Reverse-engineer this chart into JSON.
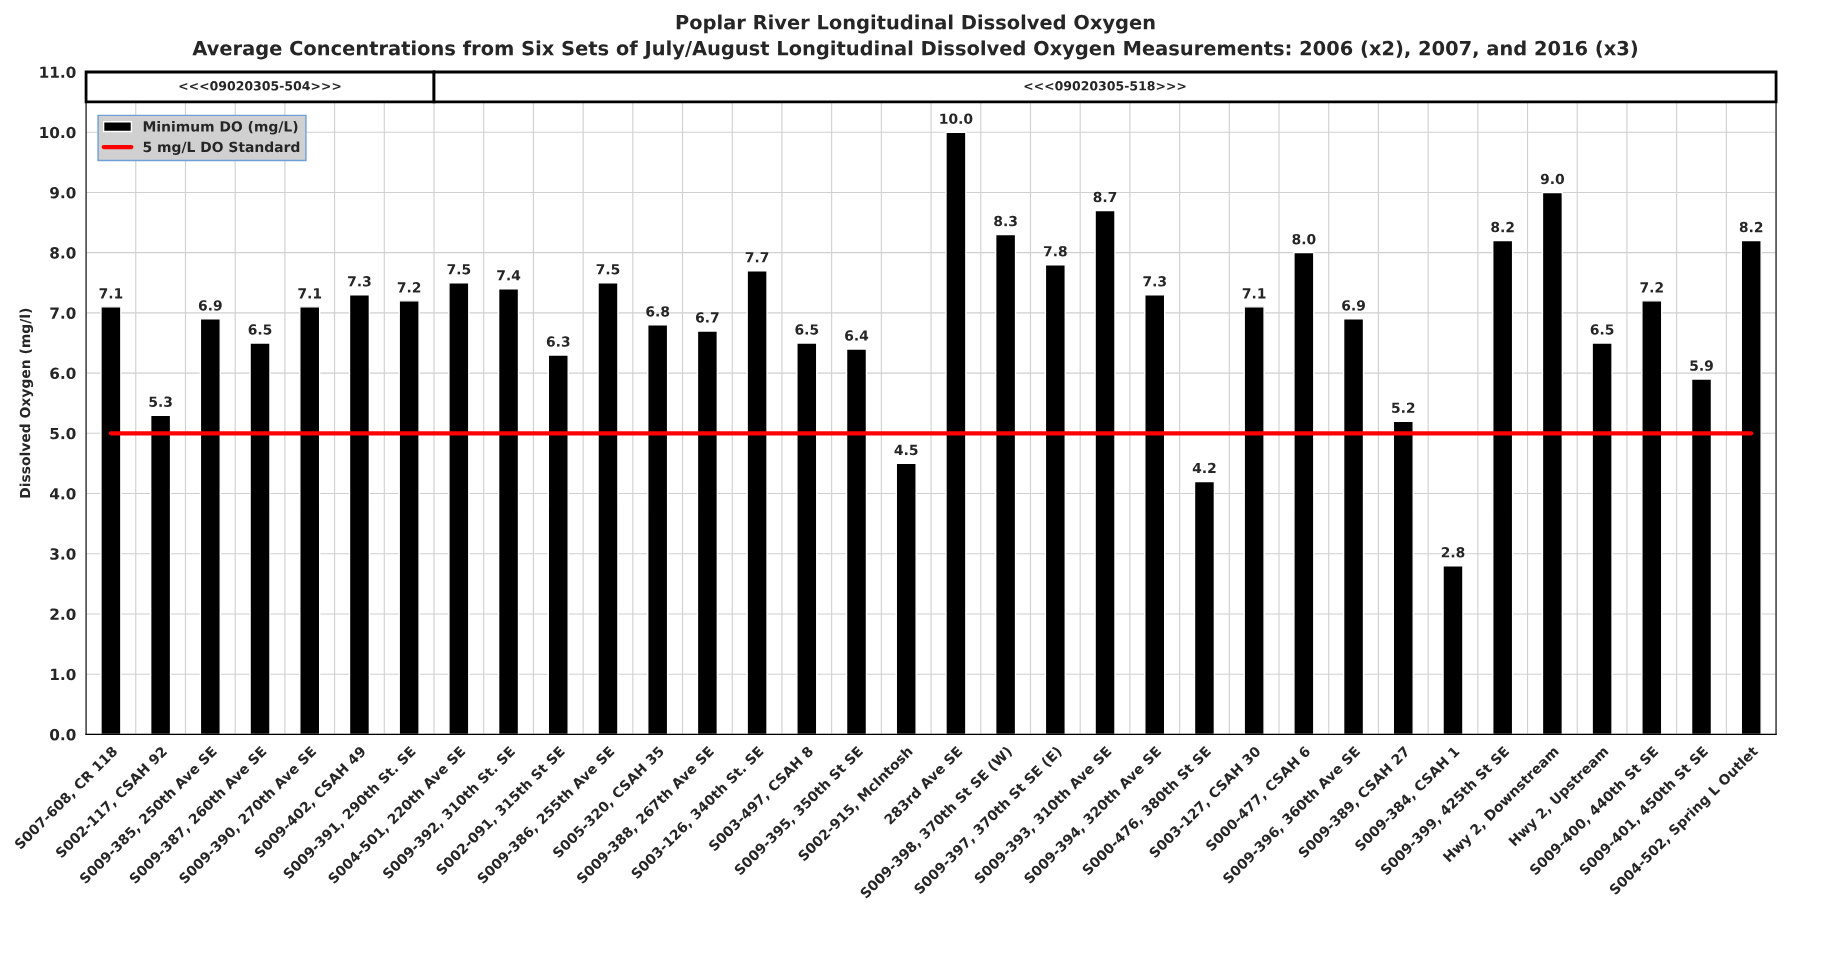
{
  "chart_data": {
    "type": "bar",
    "title": "Poplar River Longitudinal Dissolved Oxygen",
    "subtitle": "Average Concentrations from Six Sets of July/August Longitudinal Dissolved Oxygen Measurements: 2006 (x2), 2007, and 2016 (x3)",
    "ylabel": "Dissolved Oxygen (mg/l)",
    "categories": [
      "S007-608, CR 118",
      "S002-117, CSAH 92",
      "S009-385, 250th Ave SE",
      "S009-387, 260th Ave SE",
      "S009-390, 270th Ave SE",
      "S009-402, CSAH 49",
      "S009-391, 290th St. SE",
      "S004-501, 220th Ave SE",
      "S009-392, 310th St. SE",
      "S002-091, 315th St SE",
      "S009-386, 255th Ave SE",
      "S005-320, CSAH 35",
      "S009-388, 267th Ave SE",
      "S003-126, 340th St. SE",
      "S003-497, CSAH 8",
      "S009-395, 350th St SE",
      "S002-915, McIntosh",
      "283rd Ave SE",
      "S009-398, 370th St SE (W)",
      "S009-397, 370th St SE (E)",
      "S009-393, 310th Ave SE",
      "S009-394, 320th Ave SE",
      "S000-476, 380th St SE",
      "S003-127, CSAH 30",
      "S000-477, CSAH 6",
      "S009-396, 360th Ave SE",
      "S009-389, CSAH 27",
      "S009-384, CSAH 1",
      "S009-399, 425th St SE",
      "Hwy 2, Downstream",
      "Hwy 2, Upstream",
      "S009-400, 440th St SE",
      "S009-401, 450th St SE",
      "S004-502, Spring L Outlet"
    ],
    "series": [
      {
        "name": "Minimum DO (mg/L)",
        "color": "#000000",
        "values": [
          7.1,
          5.3,
          6.9,
          6.5,
          7.1,
          7.3,
          7.2,
          7.5,
          7.4,
          6.3,
          7.5,
          6.8,
          6.7,
          7.7,
          6.5,
          6.4,
          4.5,
          10.0,
          8.3,
          7.8,
          8.7,
          7.3,
          4.2,
          7.1,
          8.0,
          6.9,
          5.2,
          2.8,
          8.2,
          9.0,
          6.5,
          7.2,
          5.9,
          8.2
        ],
        "value_labels": [
          "7.1",
          "5.3",
          "6.9",
          "6.5",
          "7.1",
          "7.3",
          "7.2",
          "7.5",
          "7.4",
          "6.3",
          "7.5",
          "6.8",
          "6.7",
          "7.7",
          "6.5",
          "6.4",
          "4.5",
          "10.0",
          "8.3",
          "7.8",
          "8.7",
          "7.3",
          "4.2",
          "7.1",
          "8.0",
          "6.9",
          "5.2",
          "2.8",
          "8.2",
          "9.0",
          "6.5",
          "7.2",
          "5.9",
          "8.2"
        ]
      }
    ],
    "ref_lines": [
      {
        "axis": "y",
        "value": 5,
        "label": "5 mg/L DO Standard",
        "color": "#ff0000",
        "line_style": "solid"
      }
    ],
    "bands": [
      {
        "axis": "x",
        "from": "S007-608, CR 118",
        "to": "S009-391, 290th St. SE",
        "label": "<<<09020305-504>>>"
      },
      {
        "axis": "x",
        "from": "S004-501, 220th Ave SE",
        "to": "S004-502, Spring L Outlet",
        "label": "<<<09020305-518>>>"
      }
    ],
    "ylim": [
      0,
      11
    ],
    "yticks": [
      {
        "value": 0,
        "label": "0.0"
      },
      {
        "value": 1,
        "label": "1.0"
      },
      {
        "value": 2,
        "label": "2.0"
      },
      {
        "value": 3,
        "label": "3.0"
      },
      {
        "value": 4,
        "label": "4.0"
      },
      {
        "value": 5,
        "label": "5.0"
      },
      {
        "value": 6,
        "label": "6.0"
      },
      {
        "value": 7,
        "label": "7.0"
      },
      {
        "value": 8,
        "label": "8.0"
      },
      {
        "value": 9,
        "label": "9.0"
      },
      {
        "value": 10,
        "label": "10.0"
      },
      {
        "value": 11,
        "label": "11.0"
      }
    ],
    "grid": true,
    "legend": "top left"
  }
}
